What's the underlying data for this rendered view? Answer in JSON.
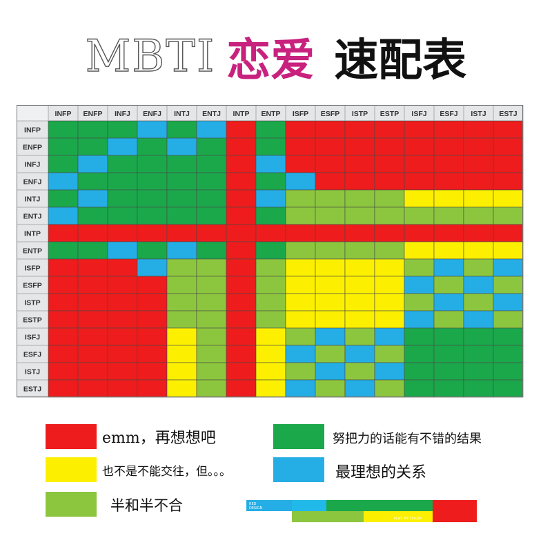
{
  "title": {
    "part1": "MBTI",
    "part2": "恋爱",
    "part3": "速配表"
  },
  "colors": {
    "R": "#ee1c1c",
    "Y": "#fcf000",
    "G": "#1aa84b",
    "L": "#8cc63e",
    "B": "#24aee5"
  },
  "chart_data": {
    "type": "heatmap",
    "columns": [
      "INFP",
      "ENFP",
      "INFJ",
      "ENFJ",
      "INTJ",
      "ENTJ",
      "INTP",
      "ENTP",
      "ISFP",
      "ESFP",
      "ISTP",
      "ESTP",
      "ISFJ",
      "ESFJ",
      "ISTJ",
      "ESTJ"
    ],
    "rows": [
      "INFP",
      "ENFP",
      "INFJ",
      "ENFJ",
      "INTJ",
      "ENTJ",
      "INTP",
      "ENTP",
      "ISFP",
      "ESFP",
      "ISTP",
      "ESTP",
      "ISFJ",
      "ESFJ",
      "ISTJ",
      "ESTJ"
    ],
    "cells": [
      [
        "G",
        "G",
        "G",
        "B",
        "G",
        "B",
        "R",
        "G",
        "R",
        "R",
        "R",
        "R",
        "R",
        "R",
        "R",
        "R"
      ],
      [
        "G",
        "G",
        "B",
        "G",
        "B",
        "G",
        "R",
        "G",
        "R",
        "R",
        "R",
        "R",
        "R",
        "R",
        "R",
        "R"
      ],
      [
        "G",
        "B",
        "G",
        "G",
        "G",
        "G",
        "R",
        "B",
        "R",
        "R",
        "R",
        "R",
        "R",
        "R",
        "R",
        "R"
      ],
      [
        "B",
        "G",
        "G",
        "G",
        "G",
        "G",
        "R",
        "G",
        "B",
        "R",
        "R",
        "R",
        "R",
        "R",
        "R",
        "R"
      ],
      [
        "G",
        "B",
        "G",
        "G",
        "G",
        "G",
        "R",
        "B",
        "L",
        "L",
        "L",
        "L",
        "Y",
        "Y",
        "Y",
        "Y"
      ],
      [
        "B",
        "G",
        "G",
        "G",
        "G",
        "G",
        "R",
        "G",
        "L",
        "L",
        "L",
        "L",
        "L",
        "L",
        "L",
        "L"
      ],
      [
        "R",
        "R",
        "R",
        "R",
        "R",
        "R",
        "R",
        "R",
        "R",
        "R",
        "R",
        "R",
        "R",
        "R",
        "R",
        "R"
      ],
      [
        "G",
        "G",
        "B",
        "G",
        "B",
        "G",
        "R",
        "G",
        "L",
        "L",
        "L",
        "L",
        "Y",
        "Y",
        "Y",
        "Y"
      ],
      [
        "R",
        "R",
        "R",
        "B",
        "L",
        "L",
        "R",
        "L",
        "Y",
        "Y",
        "Y",
        "Y",
        "L",
        "B",
        "L",
        "B"
      ],
      [
        "R",
        "R",
        "R",
        "R",
        "L",
        "L",
        "R",
        "L",
        "Y",
        "Y",
        "Y",
        "Y",
        "B",
        "L",
        "B",
        "L"
      ],
      [
        "R",
        "R",
        "R",
        "R",
        "L",
        "L",
        "R",
        "L",
        "Y",
        "Y",
        "Y",
        "Y",
        "L",
        "B",
        "L",
        "B"
      ],
      [
        "R",
        "R",
        "R",
        "R",
        "L",
        "L",
        "R",
        "L",
        "Y",
        "Y",
        "Y",
        "Y",
        "B",
        "L",
        "B",
        "L"
      ],
      [
        "R",
        "R",
        "R",
        "R",
        "Y",
        "L",
        "R",
        "Y",
        "L",
        "B",
        "L",
        "B",
        "G",
        "G",
        "G",
        "G"
      ],
      [
        "R",
        "R",
        "R",
        "R",
        "Y",
        "L",
        "R",
        "Y",
        "B",
        "L",
        "B",
        "L",
        "G",
        "G",
        "G",
        "G"
      ],
      [
        "R",
        "R",
        "R",
        "R",
        "Y",
        "L",
        "R",
        "Y",
        "L",
        "B",
        "L",
        "B",
        "G",
        "G",
        "G",
        "G"
      ],
      [
        "R",
        "R",
        "R",
        "R",
        "Y",
        "L",
        "R",
        "Y",
        "B",
        "L",
        "B",
        "L",
        "G",
        "G",
        "G",
        "G"
      ]
    ],
    "legend": [
      {
        "code": "R",
        "label": "emm，再想想吧"
      },
      {
        "code": "G",
        "label": "努把力的话能有不错的结果"
      },
      {
        "code": "Y",
        "label": "也不是不能交往，但。。。"
      },
      {
        "code": "B",
        "label": "最理想的关系"
      },
      {
        "code": "L",
        "label": "半和半不合"
      }
    ]
  },
  "ribbon": {
    "top_text": "RED\nDESIGN",
    "bottom_text": "PLAY MY COLOR"
  }
}
